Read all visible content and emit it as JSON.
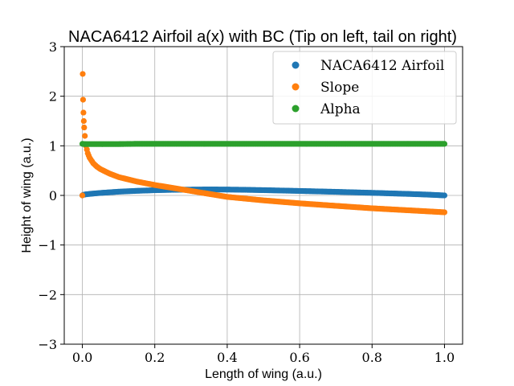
{
  "chart_data": {
    "type": "scatter",
    "title": "NACA6412 Airfoil a(x) with BC (Tip on left, tail on right)",
    "xlabel": "Length of wing (a.u.)",
    "ylabel": "Height of wing (a.u.)",
    "xlim": [
      -0.05,
      1.05
    ],
    "ylim": [
      -3,
      3
    ],
    "xticks": [
      0.0,
      0.2,
      0.4,
      0.6,
      0.8,
      1.0
    ],
    "xtick_labels": [
      "0.0",
      "0.2",
      "0.4",
      "0.6",
      "0.8",
      "1.0"
    ],
    "yticks": [
      -3,
      -2,
      -1,
      0,
      1,
      2,
      3
    ],
    "ytick_labels": [
      "−3",
      "−2",
      "−1",
      "0",
      "1",
      "2",
      "3"
    ],
    "grid": true,
    "legend_position": "top-right",
    "series": [
      {
        "name": "NACA6412 Airfoil",
        "color": "#1f77b4",
        "points": [
          [
            0.0,
            0.0
          ],
          [
            0.002,
            0.01
          ],
          [
            0.005,
            0.015
          ],
          [
            0.01,
            0.022
          ],
          [
            0.02,
            0.03
          ],
          [
            0.03,
            0.037
          ],
          [
            0.05,
            0.05
          ],
          [
            0.075,
            0.062
          ],
          [
            0.1,
            0.075
          ],
          [
            0.15,
            0.092
          ],
          [
            0.2,
            0.105
          ],
          [
            0.25,
            0.113
          ],
          [
            0.3,
            0.117
          ],
          [
            0.35,
            0.12
          ],
          [
            0.4,
            0.118
          ],
          [
            0.45,
            0.113
          ],
          [
            0.5,
            0.106
          ],
          [
            0.55,
            0.098
          ],
          [
            0.6,
            0.09
          ],
          [
            0.65,
            0.081
          ],
          [
            0.7,
            0.072
          ],
          [
            0.75,
            0.062
          ],
          [
            0.8,
            0.052
          ],
          [
            0.85,
            0.041
          ],
          [
            0.9,
            0.03
          ],
          [
            0.95,
            0.017
          ],
          [
            1.0,
            0.0
          ]
        ]
      },
      {
        "name": "Slope",
        "color": "#ff7f0e",
        "points": [
          [
            0.0,
            0.0
          ],
          [
            0.001,
            2.45
          ],
          [
            0.002,
            1.93
          ],
          [
            0.003,
            1.67
          ],
          [
            0.004,
            1.5
          ],
          [
            0.005,
            1.37
          ],
          [
            0.007,
            1.2
          ],
          [
            0.01,
            1.0
          ],
          [
            0.015,
            0.85
          ],
          [
            0.02,
            0.76
          ],
          [
            0.03,
            0.65
          ],
          [
            0.04,
            0.58
          ],
          [
            0.05,
            0.53
          ],
          [
            0.075,
            0.44
          ],
          [
            0.1,
            0.37
          ],
          [
            0.15,
            0.28
          ],
          [
            0.2,
            0.21
          ],
          [
            0.25,
            0.15
          ],
          [
            0.3,
            0.09
          ],
          [
            0.35,
            0.03
          ],
          [
            0.4,
            -0.03
          ],
          [
            0.45,
            -0.065
          ],
          [
            0.5,
            -0.1
          ],
          [
            0.55,
            -0.13
          ],
          [
            0.6,
            -0.16
          ],
          [
            0.65,
            -0.185
          ],
          [
            0.7,
            -0.21
          ],
          [
            0.75,
            -0.235
          ],
          [
            0.8,
            -0.26
          ],
          [
            0.85,
            -0.28
          ],
          [
            0.9,
            -0.3
          ],
          [
            0.95,
            -0.32
          ],
          [
            1.0,
            -0.34
          ]
        ]
      },
      {
        "name": "Alpha",
        "color": "#2ca02c",
        "points": [
          [
            0.0,
            1.04
          ],
          [
            0.005,
            1.035
          ],
          [
            0.01,
            1.035
          ],
          [
            0.05,
            1.035
          ],
          [
            0.1,
            1.035
          ],
          [
            0.15,
            1.04
          ],
          [
            0.2,
            1.04
          ],
          [
            0.3,
            1.04
          ],
          [
            0.4,
            1.04
          ],
          [
            0.5,
            1.04
          ],
          [
            0.6,
            1.04
          ],
          [
            0.7,
            1.04
          ],
          [
            0.8,
            1.04
          ],
          [
            0.9,
            1.04
          ],
          [
            1.0,
            1.04
          ]
        ]
      }
    ]
  }
}
